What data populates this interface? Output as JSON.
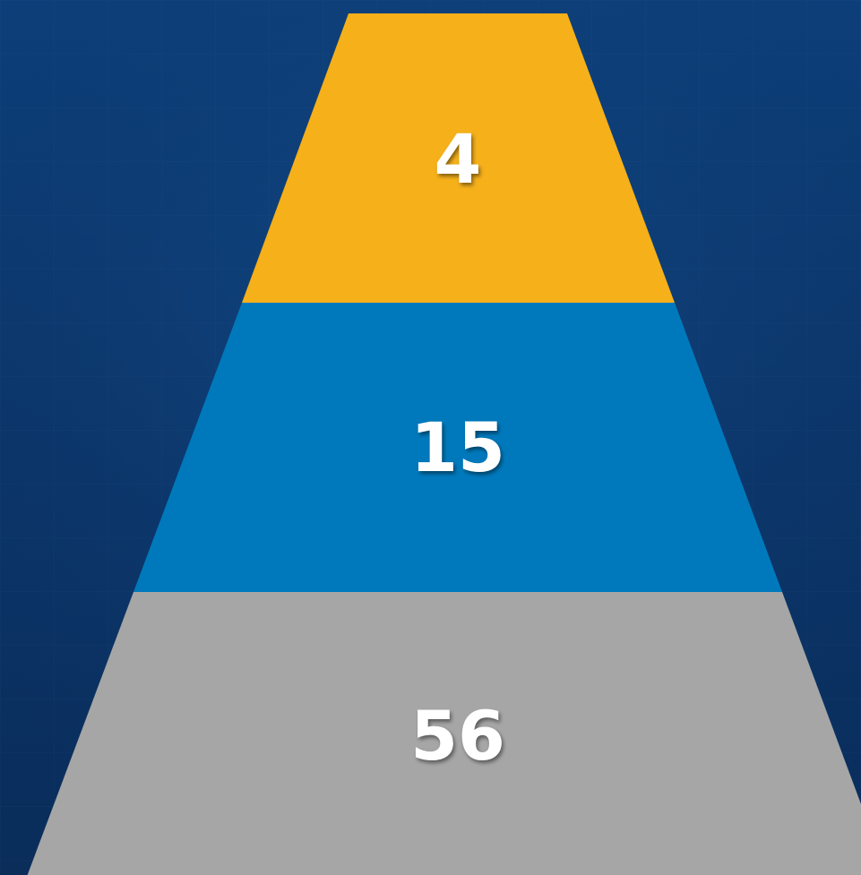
{
  "background": {
    "colors": [
      "#0d3f7a",
      "#0a2d5a",
      "#0b3468"
    ]
  },
  "pyramid": {
    "tiers": [
      {
        "label": "4",
        "color": "#f5b01a"
      },
      {
        "label": "15",
        "color": "#0079bc"
      },
      {
        "label": "56",
        "color": "#a6a6a6"
      }
    ]
  }
}
